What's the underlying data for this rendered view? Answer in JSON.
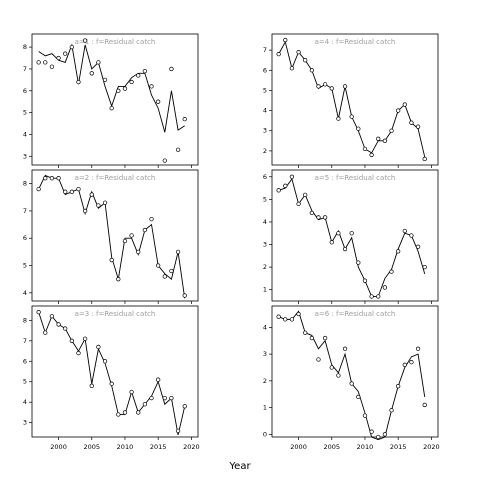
{
  "figure": {
    "xlabel": "Year"
  },
  "style": {
    "line_color": "#000000",
    "point_color": "#000000",
    "strip_text_color": "#9e9e9e"
  },
  "chart_data": [
    {
      "type": "line",
      "panel": "a=1 : f=Residual catch",
      "title": "a=1  :  f=Residual catch",
      "xlabel": "",
      "ylabel": "",
      "x_ticks": [
        2000,
        2005,
        2010,
        2015,
        2020
      ],
      "y_ticks": [
        3,
        4,
        5,
        6,
        7,
        8
      ],
      "xlim": [
        1996,
        2021
      ],
      "ylim": [
        2.6,
        8.6
      ],
      "series": [
        {
          "role": "points",
          "x": [
            1997,
            1998,
            1999,
            2000,
            2001,
            2002,
            2003,
            2004,
            2005,
            2006,
            2007,
            2008,
            2009,
            2010,
            2011,
            2012,
            2013,
            2014,
            2015,
            2016,
            2017,
            2018,
            2019
          ],
          "y": [
            7.3,
            7.3,
            7.1,
            7.5,
            7.7,
            8.0,
            6.4,
            8.3,
            6.8,
            7.3,
            6.5,
            5.2,
            6.0,
            6.1,
            6.4,
            6.7,
            6.9,
            6.2,
            5.5,
            2.8,
            7.0,
            3.3,
            4.7
          ]
        },
        {
          "role": "line",
          "x": [
            1997,
            1998,
            1999,
            2000,
            2001,
            2002,
            2003,
            2004,
            2005,
            2006,
            2007,
            2008,
            2009,
            2010,
            2011,
            2012,
            2013,
            2014,
            2015,
            2016,
            2017,
            2018,
            2019
          ],
          "y": [
            7.8,
            7.6,
            7.7,
            7.4,
            7.3,
            8.1,
            6.3,
            8.1,
            7.0,
            7.3,
            6.2,
            5.3,
            6.2,
            6.2,
            6.6,
            6.8,
            6.8,
            5.8,
            5.2,
            4.1,
            6.0,
            4.2,
            4.4
          ]
        }
      ]
    },
    {
      "type": "line",
      "panel": "a=4 : f=Residual catch",
      "title": "a=4  :  f=Residual catch",
      "xlabel": "",
      "ylabel": "",
      "x_ticks": [
        2000,
        2005,
        2010,
        2015,
        2020
      ],
      "y_ticks": [
        2,
        3,
        4,
        5,
        6,
        7
      ],
      "xlim": [
        1996,
        2021
      ],
      "ylim": [
        1.3,
        7.8
      ],
      "series": [
        {
          "role": "points",
          "x": [
            1997,
            1998,
            1999,
            2000,
            2001,
            2002,
            2003,
            2004,
            2005,
            2006,
            2007,
            2008,
            2009,
            2010,
            2011,
            2012,
            2013,
            2014,
            2015,
            2016,
            2017,
            2018,
            2019
          ],
          "y": [
            6.8,
            7.5,
            6.1,
            6.9,
            6.5,
            6.0,
            5.2,
            5.3,
            5.1,
            3.6,
            5.2,
            3.7,
            3.1,
            2.1,
            1.8,
            2.6,
            2.5,
            3.0,
            4.0,
            4.3,
            3.4,
            3.2,
            1.6
          ]
        },
        {
          "role": "line",
          "x": [
            1997,
            1998,
            1999,
            2000,
            2001,
            2002,
            2003,
            2004,
            2005,
            2006,
            2007,
            2008,
            2009,
            2010,
            2011,
            2012,
            2013,
            2014,
            2015,
            2016,
            2017,
            2018,
            2019
          ],
          "y": [
            6.8,
            7.4,
            6.1,
            6.9,
            6.5,
            6.0,
            5.1,
            5.3,
            5.1,
            3.6,
            5.2,
            3.7,
            3.0,
            2.1,
            1.9,
            2.5,
            2.5,
            3.0,
            4.0,
            4.3,
            3.4,
            3.1,
            1.7
          ]
        }
      ]
    },
    {
      "type": "line",
      "panel": "a=2 : f=Residual catch",
      "title": "a=2  :  f=Residual catch",
      "xlabel": "",
      "ylabel": "",
      "x_ticks": [
        2000,
        2005,
        2010,
        2015,
        2020
      ],
      "y_ticks": [
        4,
        5,
        6,
        7,
        8
      ],
      "xlim": [
        1996,
        2021
      ],
      "ylim": [
        3.7,
        8.5
      ],
      "series": [
        {
          "role": "points",
          "x": [
            1997,
            1998,
            1999,
            2000,
            2001,
            2002,
            2003,
            2004,
            2005,
            2006,
            2007,
            2008,
            2009,
            2010,
            2011,
            2012,
            2013,
            2014,
            2015,
            2016,
            2017,
            2018,
            2019
          ],
          "y": [
            7.8,
            8.2,
            8.2,
            8.2,
            7.7,
            7.7,
            7.8,
            7.0,
            7.6,
            7.2,
            7.3,
            5.2,
            4.5,
            5.9,
            6.1,
            5.5,
            6.3,
            6.7,
            5.0,
            4.6,
            4.8,
            5.5,
            3.9
          ]
        },
        {
          "role": "line",
          "x": [
            1997,
            1998,
            1999,
            2000,
            2001,
            2002,
            2003,
            2004,
            2005,
            2006,
            2007,
            2008,
            2009,
            2010,
            2011,
            2012,
            2013,
            2014,
            2015,
            2016,
            2017,
            2018,
            2019
          ],
          "y": [
            7.8,
            8.3,
            8.2,
            8.2,
            7.6,
            7.7,
            7.8,
            6.9,
            7.7,
            7.1,
            7.3,
            5.3,
            4.5,
            6.0,
            6.0,
            5.4,
            6.3,
            6.5,
            5.0,
            4.7,
            4.5,
            5.5,
            3.8
          ]
        }
      ]
    },
    {
      "type": "line",
      "panel": "a=5 : f=Residual catch",
      "title": "a=5  :  f=Residual catch",
      "xlabel": "",
      "ylabel": "",
      "x_ticks": [
        2000,
        2005,
        2010,
        2015,
        2020
      ],
      "y_ticks": [
        1,
        2,
        3,
        4,
        5,
        6
      ],
      "xlim": [
        1996,
        2021
      ],
      "ylim": [
        0.5,
        6.3
      ],
      "series": [
        {
          "role": "points",
          "x": [
            1997,
            1998,
            1999,
            2000,
            2001,
            2002,
            2003,
            2004,
            2005,
            2006,
            2007,
            2008,
            2009,
            2010,
            2011,
            2012,
            2013,
            2014,
            2015,
            2016,
            2017,
            2018,
            2019
          ],
          "y": [
            5.4,
            5.6,
            6.0,
            4.8,
            5.2,
            4.4,
            4.2,
            4.2,
            3.1,
            3.5,
            2.8,
            3.5,
            2.2,
            1.4,
            0.7,
            0.7,
            1.1,
            1.8,
            2.7,
            3.6,
            3.4,
            2.9,
            2.0
          ]
        },
        {
          "role": "line",
          "x": [
            1997,
            1998,
            1999,
            2000,
            2001,
            2002,
            2003,
            2004,
            2005,
            2006,
            2007,
            2008,
            2009,
            2010,
            2011,
            2012,
            2013,
            2014,
            2015,
            2016,
            2017,
            2018,
            2019
          ],
          "y": [
            5.4,
            5.5,
            5.9,
            4.8,
            5.2,
            4.5,
            4.1,
            4.2,
            3.1,
            3.6,
            2.8,
            3.3,
            2.0,
            1.4,
            0.7,
            0.7,
            1.5,
            1.9,
            2.8,
            3.5,
            3.4,
            2.7,
            1.7
          ]
        }
      ]
    },
    {
      "type": "line",
      "panel": "a=3 : f=Residual catch",
      "title": "a=3  :  f=Residual catch",
      "xlabel": "",
      "ylabel": "",
      "x_ticks": [
        2000,
        2005,
        2010,
        2015,
        2020
      ],
      "y_ticks": [
        3,
        4,
        5,
        6,
        7,
        8
      ],
      "xlim": [
        1996,
        2021
      ],
      "ylim": [
        2.3,
        8.7
      ],
      "series": [
        {
          "role": "points",
          "x": [
            1997,
            1998,
            1999,
            2000,
            2001,
            2002,
            2003,
            2004,
            2005,
            2006,
            2007,
            2008,
            2009,
            2010,
            2011,
            2012,
            2013,
            2014,
            2015,
            2016,
            2017,
            2018,
            2019
          ],
          "y": [
            8.4,
            7.4,
            8.2,
            7.8,
            7.6,
            7.0,
            6.4,
            7.1,
            4.8,
            6.7,
            6.0,
            4.9,
            3.4,
            3.5,
            4.5,
            3.5,
            3.9,
            4.2,
            5.1,
            4.2,
            4.2,
            2.6,
            3.8
          ]
        },
        {
          "role": "line",
          "x": [
            1997,
            1998,
            1999,
            2000,
            2001,
            2002,
            2003,
            2004,
            2005,
            2006,
            2007,
            2008,
            2009,
            2010,
            2011,
            2012,
            2013,
            2014,
            2015,
            2016,
            2017,
            2018,
            2019
          ],
          "y": [
            8.4,
            7.4,
            8.2,
            7.8,
            7.6,
            7.0,
            6.5,
            7.1,
            4.9,
            6.6,
            5.9,
            4.8,
            3.4,
            3.4,
            4.5,
            3.5,
            3.9,
            4.3,
            5.0,
            3.9,
            4.2,
            2.4,
            3.8
          ]
        }
      ]
    },
    {
      "type": "line",
      "panel": "a=6 : f=Residual catch",
      "title": "a=6  :  f=Residual catch",
      "xlabel": "",
      "ylabel": "",
      "x_ticks": [
        2000,
        2005,
        2010,
        2015,
        2020
      ],
      "y_ticks": [
        0,
        1,
        2,
        3,
        4
      ],
      "xlim": [
        1996,
        2021
      ],
      "ylim": [
        -0.1,
        4.8
      ],
      "series": [
        {
          "role": "points",
          "x": [
            1997,
            1998,
            1999,
            2000,
            2001,
            2002,
            2003,
            2004,
            2005,
            2006,
            2007,
            2008,
            2009,
            2010,
            2011,
            2012,
            2013,
            2014,
            2015,
            2016,
            2017,
            2018,
            2019
          ],
          "y": [
            4.4,
            4.3,
            4.3,
            4.5,
            3.8,
            3.6,
            2.8,
            3.6,
            2.5,
            2.2,
            3.2,
            1.9,
            1.4,
            0.7,
            0.1,
            -0.1,
            0.0,
            0.9,
            1.8,
            2.6,
            2.7,
            3.2,
            1.1
          ]
        },
        {
          "role": "line",
          "x": [
            1997,
            1998,
            1999,
            2000,
            2001,
            2002,
            2003,
            2004,
            2005,
            2006,
            2007,
            2008,
            2009,
            2010,
            2011,
            2012,
            2013,
            2014,
            2015,
            2016,
            2017,
            2018,
            2019
          ],
          "y": [
            4.4,
            4.3,
            4.3,
            4.6,
            3.8,
            3.7,
            3.2,
            3.5,
            2.6,
            2.3,
            3.0,
            1.9,
            1.6,
            0.8,
            -0.1,
            -0.2,
            -0.1,
            0.9,
            1.8,
            2.5,
            2.9,
            3.0,
            1.4
          ]
        }
      ]
    }
  ]
}
